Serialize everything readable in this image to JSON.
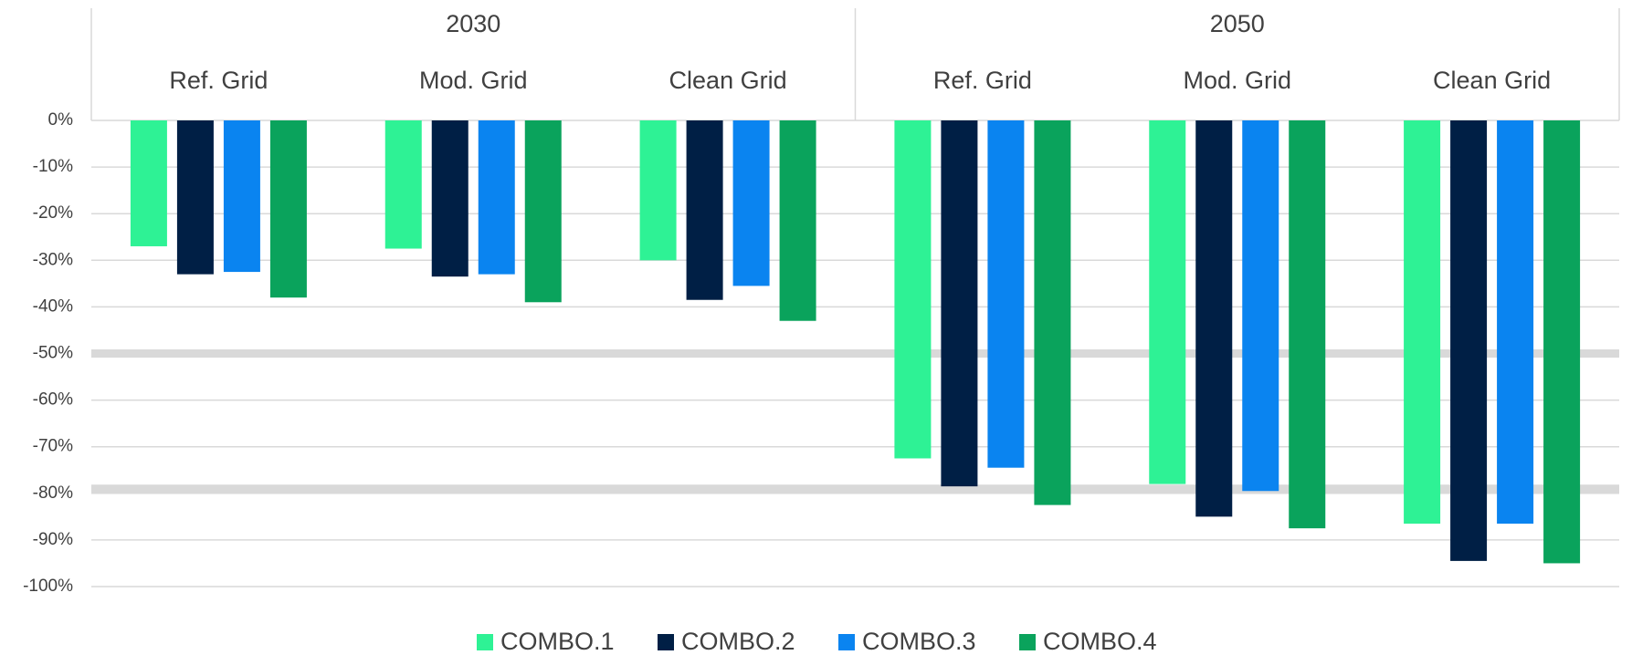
{
  "chart_data": {
    "type": "bar",
    "groups": [
      {
        "name": "2030",
        "categories": [
          "Ref. Grid",
          "Mod. Grid",
          "Clean Grid"
        ]
      },
      {
        "name": "2050",
        "categories": [
          "Ref. Grid",
          "Mod. Grid",
          "Clean Grid"
        ]
      }
    ],
    "series": [
      {
        "name": "COMBO.1",
        "color": "#2ef295",
        "values": [
          -27,
          -27.5,
          -30,
          -72.5,
          -78,
          -86.5
        ]
      },
      {
        "name": "COMBO.2",
        "color": "#001f45",
        "values": [
          -33,
          -33.5,
          -38.5,
          -78.5,
          -85,
          -94.5
        ]
      },
      {
        "name": "COMBO.3",
        "color": "#0a84f0",
        "values": [
          -32.5,
          -33,
          -35.5,
          -74.5,
          -79.5,
          -86.5
        ]
      },
      {
        "name": "COMBO.4",
        "color": "#0aa35c",
        "values": [
          -38,
          -39,
          -43,
          -82.5,
          -87.5,
          -95
        ]
      }
    ],
    "ylim": [
      -100,
      0
    ],
    "yticks": [
      {
        "value": 0,
        "label": "0%"
      },
      {
        "value": -10,
        "label": "-10%"
      },
      {
        "value": -20,
        "label": "-20%"
      },
      {
        "value": -30,
        "label": "-30%"
      },
      {
        "value": -40,
        "label": "-40%"
      },
      {
        "value": -50,
        "label": "-50%"
      },
      {
        "value": -60,
        "label": "-60%"
      },
      {
        "value": -70,
        "label": "-70%"
      },
      {
        "value": -80,
        "label": "-80%"
      },
      {
        "value": -90,
        "label": "-90%"
      },
      {
        "value": -100,
        "label": "-100%"
      }
    ],
    "reference_lines": [
      -50,
      -79
    ],
    "grid": true,
    "legend": "bottom"
  }
}
